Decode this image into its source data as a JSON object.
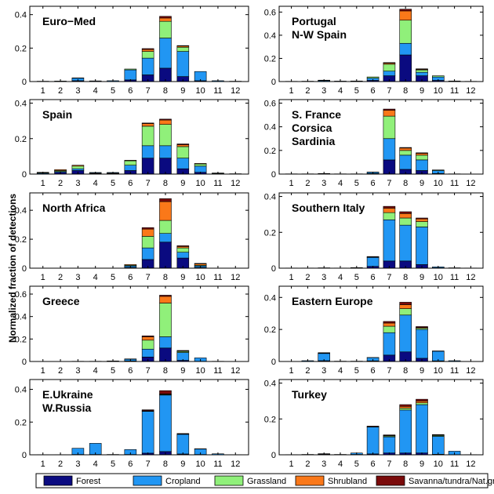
{
  "chart_data": {
    "type": "bar",
    "stacked": true,
    "ylabel": "Normalized fraction of detections",
    "grid": false,
    "legend_position": "bottom",
    "categories": [
      "1",
      "2",
      "3",
      "4",
      "5",
      "6",
      "7",
      "8",
      "9",
      "10",
      "11",
      "12"
    ],
    "series_names": [
      "Forest",
      "Cropland",
      "Grassland",
      "Shrubland",
      "Savanna/tundra/Nat.grass"
    ],
    "colors": {
      "Forest": "#0a0a80",
      "Cropland": "#2196f3",
      "Grassland": "#90f07a",
      "Shrubland": "#fa7819",
      "Savanna/tundra/Nat.grass": "#7a0a0a"
    },
    "panels": [
      {
        "title": "Euro−Med",
        "ylim": [
          0,
          0.45
        ],
        "yticks": [
          "0",
          "0.2",
          "0.4"
        ],
        "series": [
          {
            "name": "Forest",
            "values": [
              0,
              0,
              0.005,
              0,
              0,
              0.01,
              0.04,
              0.08,
              0.03,
              0.005,
              0,
              0
            ]
          },
          {
            "name": "Cropland",
            "values": [
              0.002,
              0.003,
              0.015,
              0.004,
              0.005,
              0.06,
              0.1,
              0.18,
              0.15,
              0.055,
              0.005,
              0.002
            ]
          },
          {
            "name": "Grassland",
            "values": [
              0,
              0,
              0.002,
              0,
              0,
              0.005,
              0.04,
              0.1,
              0.025,
              0,
              0,
              0
            ]
          },
          {
            "name": "Shrubland",
            "values": [
              0,
              0,
              0,
              0,
              0,
              0,
              0.012,
              0.02,
              0.007,
              0,
              0,
              0
            ]
          },
          {
            "name": "Savanna/tundra/Nat.grass",
            "values": [
              0,
              0,
              0,
              0,
              0,
              0,
              0.005,
              0.01,
              0.003,
              0,
              0,
              0
            ]
          }
        ]
      },
      {
        "title": "Portugal\nN-W Spain",
        "ylim": [
          0,
          0.65
        ],
        "yticks": [
          "0",
          "0.2",
          "0.4",
          "0.6"
        ],
        "series": [
          {
            "name": "Forest",
            "values": [
              0,
              0,
              0.003,
              0,
              0,
              0.01,
              0.05,
              0.23,
              0.05,
              0.01,
              0,
              0
            ]
          },
          {
            "name": "Cropland",
            "values": [
              0.002,
              0.003,
              0.006,
              0.004,
              0.005,
              0.02,
              0.04,
              0.1,
              0.03,
              0.03,
              0.005,
              0.002
            ]
          },
          {
            "name": "Grassland",
            "values": [
              0,
              0,
              0.003,
              0,
              0,
              0.01,
              0.06,
              0.2,
              0.02,
              0.01,
              0,
              0
            ]
          },
          {
            "name": "Shrubland",
            "values": [
              0,
              0,
              0,
              0,
              0,
              0,
              0.01,
              0.08,
              0.005,
              0,
              0,
              0
            ]
          },
          {
            "name": "Savanna/tundra/Nat.grass",
            "values": [
              0,
              0,
              0,
              0,
              0,
              0,
              0.004,
              0.015,
              0.005,
              0,
              0,
              0
            ]
          }
        ]
      },
      {
        "title": "Spain",
        "ylim": [
          0,
          0.42
        ],
        "yticks": [
          "0",
          "0.2",
          "0.4"
        ],
        "series": [
          {
            "name": "Forest",
            "values": [
              0.002,
              0.01,
              0.02,
              0.003,
              0.003,
              0.02,
              0.09,
              0.09,
              0.03,
              0.01,
              0,
              0
            ]
          },
          {
            "name": "Cropland",
            "values": [
              0.004,
              0.005,
              0.01,
              0.004,
              0.004,
              0.03,
              0.07,
              0.07,
              0.06,
              0.035,
              0.004,
              0.002
            ]
          },
          {
            "name": "Grassland",
            "values": [
              0.003,
              0.005,
              0.015,
              0.002,
              0.002,
              0.025,
              0.11,
              0.12,
              0.065,
              0.012,
              0.002,
              0
            ]
          },
          {
            "name": "Shrubland",
            "values": [
              0.001,
              0.005,
              0.005,
              0,
              0,
              0.003,
              0.015,
              0.025,
              0.01,
              0.003,
              0,
              0
            ]
          },
          {
            "name": "Savanna/tundra/Nat.grass",
            "values": [
              0,
              0,
              0,
              0,
              0,
              0,
              0.003,
              0.005,
              0.005,
              0,
              0,
              0
            ]
          }
        ]
      },
      {
        "title": "S. France\nCorsica\nSardinia",
        "ylim": [
          0,
          0.63
        ],
        "yticks": [
          "0",
          "0.2",
          "0.4",
          "0.6"
        ],
        "series": [
          {
            "name": "Forest",
            "values": [
              0,
              0,
              0.002,
              0,
              0,
              0.005,
              0.12,
              0.04,
              0.03,
              0.005,
              0,
              0
            ]
          },
          {
            "name": "Cropland",
            "values": [
              0.002,
              0.002,
              0.003,
              0.002,
              0.002,
              0.01,
              0.18,
              0.12,
              0.09,
              0.025,
              0.002,
              0
            ]
          },
          {
            "name": "Grassland",
            "values": [
              0,
              0,
              0,
              0,
              0,
              0.002,
              0.19,
              0.04,
              0.04,
              0.005,
              0,
              0
            ]
          },
          {
            "name": "Shrubland",
            "values": [
              0,
              0,
              0,
              0,
              0,
              0,
              0.05,
              0.02,
              0.015,
              0,
              0,
              0
            ]
          },
          {
            "name": "Savanna/tundra/Nat.grass",
            "values": [
              0,
              0,
              0,
              0,
              0,
              0,
              0.01,
              0.005,
              0.005,
              0,
              0,
              0
            ]
          }
        ]
      },
      {
        "title": "North Africa",
        "ylim": [
          0,
          0.52
        ],
        "yticks": [
          "0",
          "0.2",
          "0.4"
        ],
        "series": [
          {
            "name": "Forest",
            "values": [
              0,
              0,
              0,
              0,
              0,
              0.005,
              0.06,
              0.18,
              0.07,
              0.005,
              0,
              0
            ]
          },
          {
            "name": "Cropland",
            "values": [
              0.001,
              0.001,
              0.001,
              0.001,
              0.001,
              0.01,
              0.08,
              0.06,
              0.04,
              0.01,
              0,
              0
            ]
          },
          {
            "name": "Grassland",
            "values": [
              0,
              0,
              0,
              0,
              0,
              0.005,
              0.08,
              0.09,
              0.03,
              0.005,
              0,
              0
            ]
          },
          {
            "name": "Shrubland",
            "values": [
              0,
              0,
              0,
              0,
              0,
              0.005,
              0.05,
              0.13,
              0.01,
              0.01,
              0,
              0
            ]
          },
          {
            "name": "Savanna/tundra/Nat.grass",
            "values": [
              0,
              0,
              0,
              0,
              0,
              0,
              0.01,
              0.02,
              0.005,
              0.003,
              0,
              0
            ]
          }
        ]
      },
      {
        "title": "Southern Italy",
        "ylim": [
          0,
          0.42
        ],
        "yticks": [
          "0",
          "0.2",
          "0.4"
        ],
        "series": [
          {
            "name": "Forest",
            "values": [
              0,
              0,
              0,
              0,
              0,
              0.01,
              0.04,
              0.04,
              0.02,
              0.002,
              0,
              0
            ]
          },
          {
            "name": "Cropland",
            "values": [
              0.001,
              0.001,
              0.002,
              0.001,
              0.003,
              0.05,
              0.23,
              0.2,
              0.21,
              0.005,
              0.002,
              0.001
            ]
          },
          {
            "name": "Grassland",
            "values": [
              0,
              0,
              0,
              0,
              0,
              0.002,
              0.04,
              0.04,
              0.03,
              0,
              0,
              0
            ]
          },
          {
            "name": "Shrubland",
            "values": [
              0,
              0,
              0,
              0,
              0,
              0,
              0.025,
              0.025,
              0.015,
              0,
              0,
              0
            ]
          },
          {
            "name": "Savanna/tundra/Nat.grass",
            "values": [
              0,
              0,
              0,
              0,
              0,
              0.003,
              0.01,
              0.01,
              0.005,
              0,
              0,
              0
            ]
          }
        ]
      },
      {
        "title": "Greece",
        "ylim": [
          0,
          0.67
        ],
        "yticks": [
          "0",
          "0.2",
          "0.4",
          "0.6"
        ],
        "series": [
          {
            "name": "Forest",
            "values": [
              0,
              0,
              0,
              0,
              0,
              0.005,
              0.04,
              0.12,
              0.01,
              0.002,
              0,
              0
            ]
          },
          {
            "name": "Cropland",
            "values": [
              0.001,
              0.001,
              0.002,
              0.002,
              0.005,
              0.015,
              0.07,
              0.1,
              0.07,
              0.03,
              0.002,
              0
            ]
          },
          {
            "name": "Grassland",
            "values": [
              0,
              0,
              0,
              0,
              0,
              0.003,
              0.08,
              0.3,
              0.01,
              0,
              0,
              0
            ]
          },
          {
            "name": "Shrubland",
            "values": [
              0,
              0,
              0,
              0,
              0,
              0,
              0.03,
              0.06,
              0.005,
              0,
              0,
              0
            ]
          },
          {
            "name": "Savanna/tundra/Nat.grass",
            "values": [
              0,
              0,
              0,
              0,
              0,
              0,
              0.008,
              0.01,
              0.003,
              0,
              0,
              0
            ]
          }
        ]
      },
      {
        "title": "Eastern Europe",
        "ylim": [
          0,
          0.47
        ],
        "yticks": [
          "0",
          "0.2",
          "0.4"
        ],
        "series": [
          {
            "name": "Forest",
            "values": [
              0,
              0,
              0.005,
              0,
              0,
              0.004,
              0.04,
              0.06,
              0.02,
              0.004,
              0,
              0
            ]
          },
          {
            "name": "Cropland",
            "values": [
              0.001,
              0.005,
              0.045,
              0.002,
              0.002,
              0.02,
              0.14,
              0.23,
              0.18,
              0.06,
              0.005,
              0.001
            ]
          },
          {
            "name": "Grassland",
            "values": [
              0,
              0,
              0.002,
              0,
              0,
              0.001,
              0.04,
              0.04,
              0.008,
              0.002,
              0,
              0
            ]
          },
          {
            "name": "Shrubland",
            "values": [
              0,
              0,
              0,
              0,
              0,
              0,
              0.02,
              0.025,
              0.005,
              0,
              0,
              0
            ]
          },
          {
            "name": "Savanna/tundra/Nat.grass",
            "values": [
              0,
              0,
              0.003,
              0,
              0,
              0,
              0.01,
              0.015,
              0.005,
              0,
              0,
              0
            ]
          }
        ]
      },
      {
        "title": "E.Ukraine\nW.Russia",
        "ylim": [
          0,
          0.46
        ],
        "yticks": [
          "0",
          "0.2",
          "0.4"
        ],
        "series": [
          {
            "name": "Forest",
            "values": [
              0,
              0,
              0.002,
              0.002,
              0,
              0.002,
              0.01,
              0.02,
              0.005,
              0.002,
              0,
              0
            ]
          },
          {
            "name": "Cropland",
            "values": [
              0.001,
              0.001,
              0.038,
              0.068,
              0.002,
              0.03,
              0.255,
              0.345,
              0.12,
              0.033,
              0.006,
              0.001
            ]
          },
          {
            "name": "Grassland",
            "values": [
              0,
              0,
              0,
              0,
              0,
              0,
              0.003,
              0.004,
              0.002,
              0,
              0,
              0
            ]
          },
          {
            "name": "Shrubland",
            "values": [
              0,
              0,
              0,
              0,
              0,
              0,
              0.002,
              0.003,
              0,
              0,
              0,
              0
            ]
          },
          {
            "name": "Savanna/tundra/Nat.grass",
            "values": [
              0,
              0,
              0,
              0,
              0,
              0,
              0.005,
              0.02,
              0.003,
              0.002,
              0,
              0
            ]
          }
        ]
      },
      {
        "title": "Turkey",
        "ylim": [
          0,
          0.42
        ],
        "yticks": [
          "0",
          "0.2",
          "0.4"
        ],
        "series": [
          {
            "name": "Forest",
            "values": [
              0,
              0,
              0,
              0,
              0.002,
              0.005,
              0.01,
              0.01,
              0.01,
              0.003,
              0,
              0
            ]
          },
          {
            "name": "Cropland",
            "values": [
              0.001,
              0.002,
              0.004,
              0.002,
              0.008,
              0.15,
              0.09,
              0.24,
              0.27,
              0.1,
              0.02,
              0.001
            ]
          },
          {
            "name": "Grassland",
            "values": [
              0,
              0,
              0,
              0,
              0,
              0.002,
              0.005,
              0.01,
              0.01,
              0.005,
              0,
              0
            ]
          },
          {
            "name": "Shrubland",
            "values": [
              0,
              0,
              0,
              0,
              0,
              0,
              0.003,
              0.01,
              0.01,
              0.002,
              0,
              0
            ]
          },
          {
            "name": "Savanna/tundra/Nat.grass",
            "values": [
              0,
              0,
              0.002,
              0,
              0,
              0.003,
              0.003,
              0.01,
              0.01,
              0.003,
              0,
              0
            ]
          }
        ]
      }
    ]
  }
}
